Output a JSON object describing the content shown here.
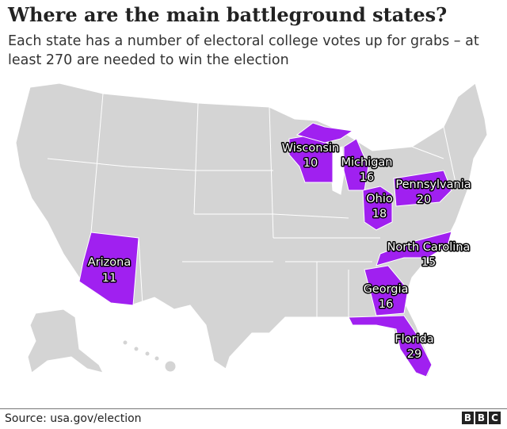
{
  "title": "Where are the main battleground states?",
  "subtitle": "Each state has a number of electoral college votes up for grabs – at least 270 are needed to win the election",
  "colors": {
    "battleground": "#a020f0",
    "other": "#d4d4d4",
    "border": "#ffffff"
  },
  "states": [
    {
      "name": "Wisconsin",
      "votes": "10"
    },
    {
      "name": "Michigan",
      "votes": "16"
    },
    {
      "name": "Pennsylvania",
      "votes": "20"
    },
    {
      "name": "Ohio",
      "votes": "18"
    },
    {
      "name": "North Carolina",
      "votes": "15"
    },
    {
      "name": "Georgia",
      "votes": "16"
    },
    {
      "name": "Florida",
      "votes": "29"
    },
    {
      "name": "Arizona",
      "votes": "11"
    }
  ],
  "source": "Source: usa.gov/election",
  "logo": [
    "B",
    "B",
    "C"
  ]
}
